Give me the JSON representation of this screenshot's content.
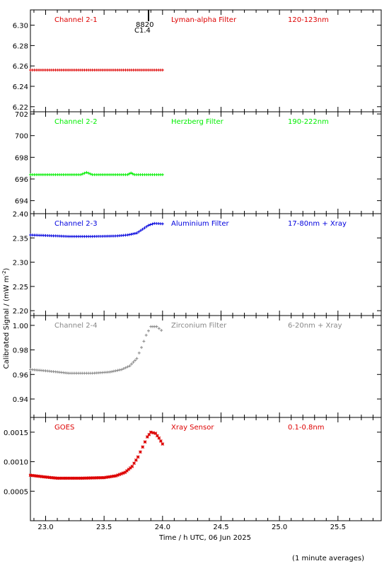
{
  "figure": {
    "ylabel": "Calibrated Signal / (mW m",
    "ylabel_sup": "-2",
    "ylabel_end": ")",
    "xlabel": "Time / h UTC, 06 Jun 2025",
    "footnote": "(1 minute averages)",
    "event_labels": [
      "8820",
      "C1.4"
    ],
    "event_time": 23.88,
    "xlim": [
      22.87,
      25.87
    ],
    "x_ticks": [
      23.0,
      23.5,
      24.0,
      24.5,
      25.0,
      25.5
    ],
    "x_tick_labels": [
      "23.0",
      "23.5",
      "24.0",
      "24.5",
      "25.0",
      "25.5"
    ]
  },
  "chart_data": [
    {
      "type": "scatter",
      "channel": "Channel 2-1",
      "filter": "Lyman-alpha Filter",
      "band": "120-123nm",
      "color": "#dd0000",
      "marker": "plus",
      "ylim": [
        6.215,
        6.315
      ],
      "y_ticks": [
        6.22,
        6.24,
        6.26,
        6.28,
        6.3
      ],
      "y_tick_labels": [
        "6.22",
        "6.24",
        "6.26",
        "6.28",
        "6.30"
      ],
      "points": [
        [
          22.87,
          6.256
        ],
        [
          23.2,
          6.256
        ],
        [
          23.5,
          6.256
        ],
        [
          23.8,
          6.256
        ],
        [
          24.0,
          6.256
        ]
      ]
    },
    {
      "type": "scatter",
      "channel": "Channel 2-2",
      "filter": "Herzberg Filter",
      "band": "190-222nm",
      "color": "#00ee00",
      "marker": "plus",
      "ylim": [
        692.8,
        702.2
      ],
      "y_ticks": [
        694,
        696,
        698,
        700,
        702
      ],
      "y_tick_labels": [
        "694",
        "696",
        "698",
        "700",
        "702"
      ],
      "points": [
        [
          22.87,
          696.4
        ],
        [
          23.3,
          696.4
        ],
        [
          23.35,
          696.6
        ],
        [
          23.4,
          696.4
        ],
        [
          23.7,
          696.4
        ],
        [
          23.73,
          696.55
        ],
        [
          23.76,
          696.4
        ],
        [
          24.0,
          696.4
        ]
      ]
    },
    {
      "type": "scatter",
      "channel": "Channel 2-3",
      "filter": "Aluminium Filter",
      "band": "17-80nm + Xray",
      "color": "#0000dd",
      "marker": "plus",
      "ylim": [
        2.19,
        2.4
      ],
      "y_ticks": [
        2.2,
        2.25,
        2.3,
        2.35,
        2.4
      ],
      "y_tick_labels": [
        "2.20",
        "2.25",
        "2.30",
        "2.35",
        "2.40"
      ],
      "points": [
        [
          22.87,
          2.356
        ],
        [
          23.0,
          2.355
        ],
        [
          23.2,
          2.353
        ],
        [
          23.4,
          2.353
        ],
        [
          23.6,
          2.354
        ],
        [
          23.7,
          2.356
        ],
        [
          23.78,
          2.36
        ],
        [
          23.83,
          2.368
        ],
        [
          23.88,
          2.376
        ],
        [
          23.93,
          2.38
        ],
        [
          24.0,
          2.379
        ]
      ]
    },
    {
      "type": "scatter",
      "channel": "Channel 2-4",
      "filter": "Zirconium Filter",
      "band": "6-20nm + Xray",
      "color": "#888888",
      "marker": "plus",
      "ylim": [
        0.925,
        1.008
      ],
      "y_ticks": [
        0.94,
        0.96,
        0.98,
        1.0
      ],
      "y_tick_labels": [
        "0.94",
        "0.96",
        "0.98",
        "1.00"
      ],
      "points": [
        [
          22.87,
          0.964
        ],
        [
          23.0,
          0.963
        ],
        [
          23.2,
          0.961
        ],
        [
          23.4,
          0.961
        ],
        [
          23.55,
          0.962
        ],
        [
          23.65,
          0.964
        ],
        [
          23.72,
          0.967
        ],
        [
          23.78,
          0.973
        ],
        [
          23.82,
          0.982
        ],
        [
          23.86,
          0.992
        ],
        [
          23.9,
          0.999
        ],
        [
          23.95,
          0.999
        ],
        [
          23.99,
          0.996
        ]
      ]
    },
    {
      "type": "scatter",
      "channel": "GOES",
      "filter": "Xray Sensor",
      "band": "0.1-0.8nm",
      "color": "#dd0000",
      "marker": "star",
      "ylim": [
        0.0,
        0.00175
      ],
      "y_ticks": [
        0.0005,
        0.001,
        0.0015
      ],
      "y_tick_labels": [
        "0.0005",
        "0.0010",
        "0.0015"
      ],
      "points": [
        [
          22.87,
          0.00077
        ],
        [
          23.0,
          0.00074
        ],
        [
          23.1,
          0.00072
        ],
        [
          23.3,
          0.00072
        ],
        [
          23.5,
          0.00073
        ],
        [
          23.6,
          0.00076
        ],
        [
          23.68,
          0.00082
        ],
        [
          23.74,
          0.00092
        ],
        [
          23.79,
          0.00108
        ],
        [
          23.83,
          0.00125
        ],
        [
          23.87,
          0.00142
        ],
        [
          23.9,
          0.0015
        ],
        [
          23.94,
          0.00148
        ],
        [
          23.97,
          0.0014
        ],
        [
          24.0,
          0.0013
        ]
      ]
    }
  ]
}
